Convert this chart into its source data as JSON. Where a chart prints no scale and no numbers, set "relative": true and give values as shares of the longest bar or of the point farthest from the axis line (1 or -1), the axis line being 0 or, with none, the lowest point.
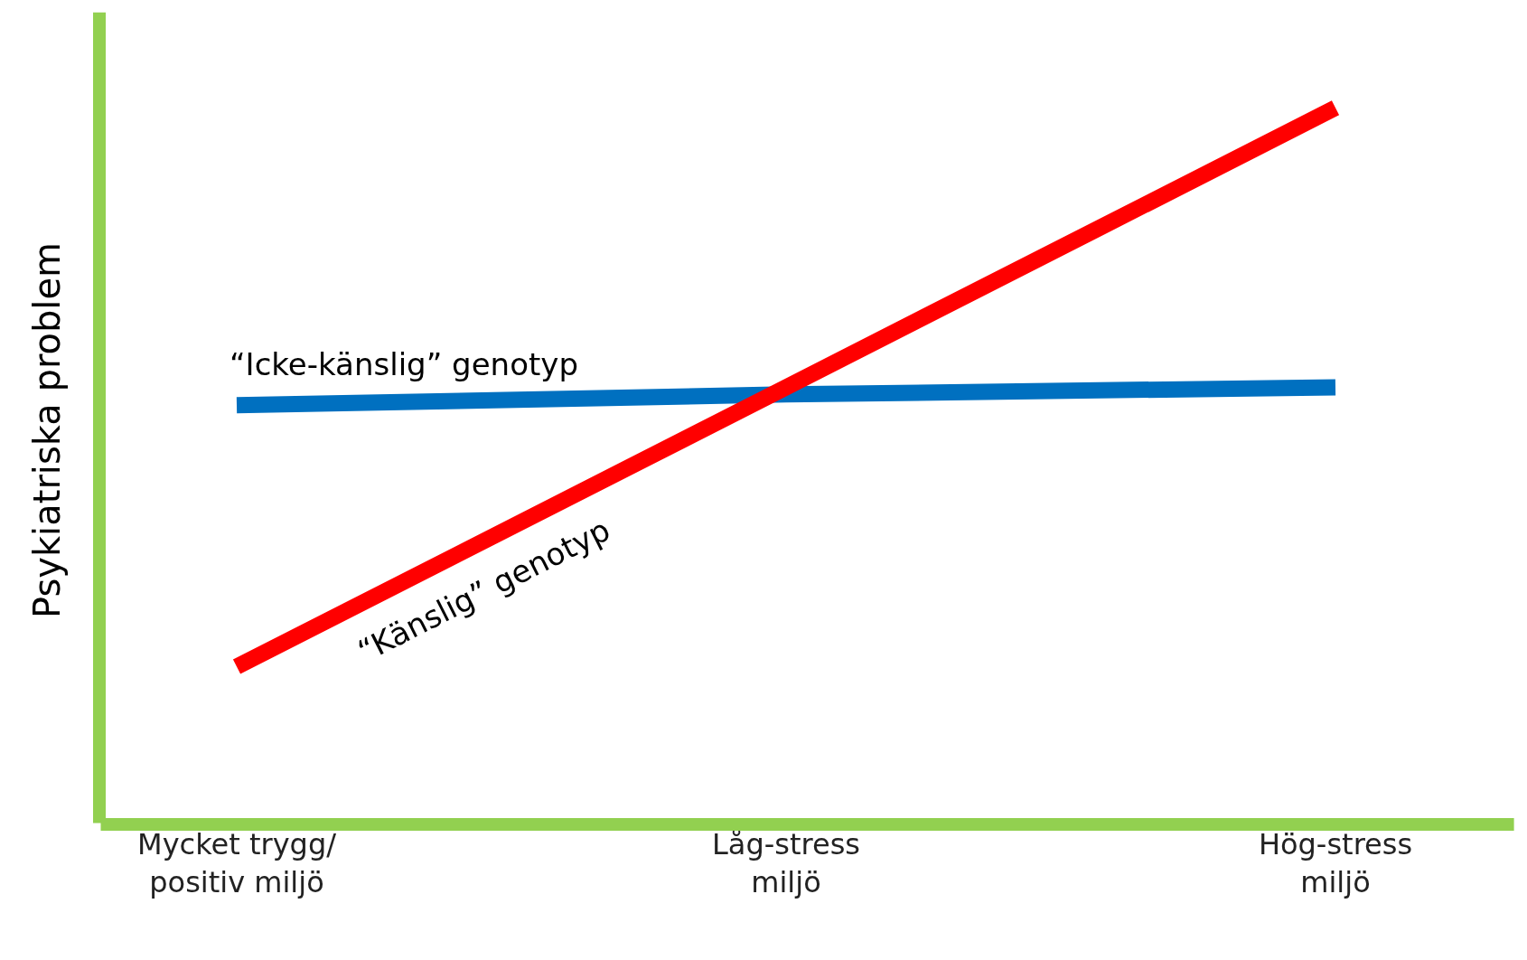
{
  "chart_data": {
    "type": "line",
    "relative": true,
    "ylabel": "Psykiatriska problem",
    "categories": [
      "Mycket trygg/\npositiv miljö",
      "Låg-stress\nmiljö",
      "Hög-stress\nmiljö"
    ],
    "series": [
      {
        "name": "“Icke-känslig” genotyp",
        "color": "#0070c0",
        "values": [
          0.585,
          0.6,
          0.61
        ]
      },
      {
        "name": "“Känslig” genotyp",
        "color": "#ff0000",
        "values": [
          0.22,
          0.61,
          1
        ]
      }
    ],
    "legend": false
  }
}
